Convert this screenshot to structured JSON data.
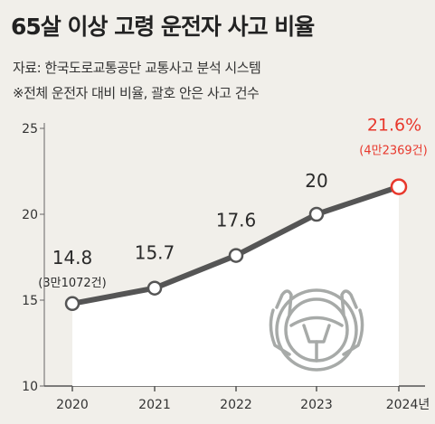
{
  "title": "65살 이상 고령 운전자 사고 비율",
  "source": "자료: 한국도로교통공단 교통사고 분석 시스템",
  "note": "※전체 운전자 대비 비율, 괄호 안은 사고 건수",
  "colors": {
    "background": "#f1efea",
    "line": "#555555",
    "area": "#ffffff",
    "highlight": "#e8382c",
    "text": "#333333"
  },
  "chart_data": {
    "type": "area",
    "title": "65살 이상 고령 운전자 사고 비율",
    "xlabel": "",
    "ylabel": "",
    "categories": [
      "2020",
      "2021",
      "2022",
      "2023",
      "2024년"
    ],
    "values": [
      14.8,
      15.7,
      17.6,
      20,
      21.6
    ],
    "value_labels": [
      "14.8",
      "15.7",
      "17.6",
      "20",
      "21.6%"
    ],
    "sub_labels": [
      "(3만1072건)",
      "",
      "",
      "",
      "(4만2369건)"
    ],
    "yticks": [
      "25",
      "20",
      "15",
      "10"
    ],
    "ylim": [
      10,
      25
    ],
    "grid": false,
    "legend": "none",
    "icon": "steering-wheel-icon"
  }
}
